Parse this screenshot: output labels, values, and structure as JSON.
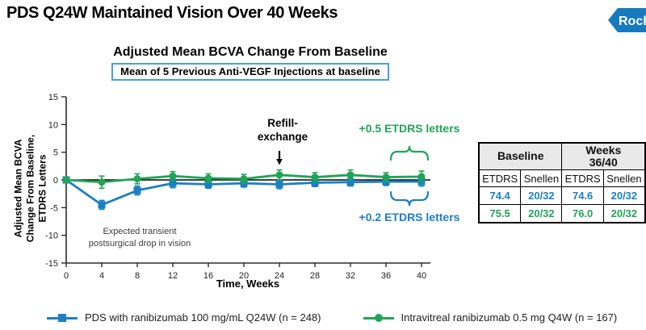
{
  "page": {
    "title": "PDS Q24W Maintained Vision Over 40 Weeks",
    "logo_text": "Roche",
    "logo_color": "#1779be"
  },
  "chart": {
    "title": "Adjusted Mean BCVA Change From Baseline",
    "subtitle": "Mean of 5 Previous Anti-VEGF Injections at baseline",
    "ylabel": "Adjusted Mean BCVA\nChange From Baseline,\nETDRS Letters",
    "xlabel": "Time, Weeks",
    "annotations": {
      "postsurgical": "Expected transient\npostsurgical drop in vision",
      "refill": "Refill-\nexchange",
      "green_delta": "+0.5 ETDRS letters",
      "blue_delta": "+0.2 ETDRS letters"
    }
  },
  "chart_data": {
    "type": "line",
    "x": [
      0,
      4,
      8,
      12,
      16,
      20,
      24,
      28,
      32,
      36,
      40
    ],
    "series": [
      {
        "name": "PDS with ranibizumab 100 mg/mL Q24W (n = 248)",
        "color": "#1b7fc4",
        "marker": "square",
        "values": [
          0,
          -4.5,
          -1.9,
          -0.6,
          -0.8,
          -0.6,
          -0.8,
          -0.5,
          -0.4,
          -0.3,
          -0.3
        ],
        "error": [
          0.4,
          0.8,
          0.8,
          0.8,
          0.7,
          0.7,
          0.8,
          0.7,
          0.7,
          0.7,
          0.8
        ]
      },
      {
        "name": "Intravitreal ranibizumab 0.5 mg Q4W (n = 167)",
        "color": "#21a456",
        "marker": "circle",
        "values": [
          0,
          -0.4,
          0.2,
          0.7,
          0.3,
          0.2,
          0.9,
          0.5,
          0.9,
          0.5,
          0.6
        ],
        "error": [
          0.4,
          1.1,
          0.9,
          0.8,
          0.8,
          0.8,
          0.9,
          0.8,
          0.9,
          0.8,
          1.0
        ]
      }
    ],
    "title": "Adjusted Mean BCVA Change From Baseline",
    "xlabel": "Time, Weeks",
    "ylabel": "Adjusted Mean BCVA Change From Baseline, ETDRS Letters",
    "ylim": [
      -15,
      15
    ],
    "yticks": [
      15,
      10,
      5,
      0,
      -5,
      -10,
      -15
    ],
    "xticks": [
      0,
      4,
      8,
      12,
      16,
      20,
      24,
      28,
      32,
      36,
      40
    ],
    "grid": false,
    "legend_position": "bottom"
  },
  "table": {
    "col_groups": [
      "Baseline",
      "Weeks\n36/40"
    ],
    "sub_headers": [
      "ETDRS",
      "Snellen",
      "ETDRS",
      "Snellen"
    ],
    "rows": [
      {
        "color": "#1b7fc4",
        "cells": [
          "74.4",
          "20/32",
          "74.6",
          "20/32"
        ]
      },
      {
        "color": "#21a456",
        "cells": [
          "75.5",
          "20/32",
          "76.0",
          "20/32"
        ]
      }
    ]
  },
  "legend": [
    {
      "label": "PDS with ranibizumab 100 mg/mL Q24W (n = 248)",
      "color": "#1b7fc4"
    },
    {
      "label": "Intravitreal ranibizumab 0.5 mg Q4W (n = 167)",
      "color": "#21a456"
    }
  ],
  "colors": {
    "blue": "#1b7fc4",
    "green": "#21a456",
    "subtitle_border": "#4a9fd8"
  }
}
